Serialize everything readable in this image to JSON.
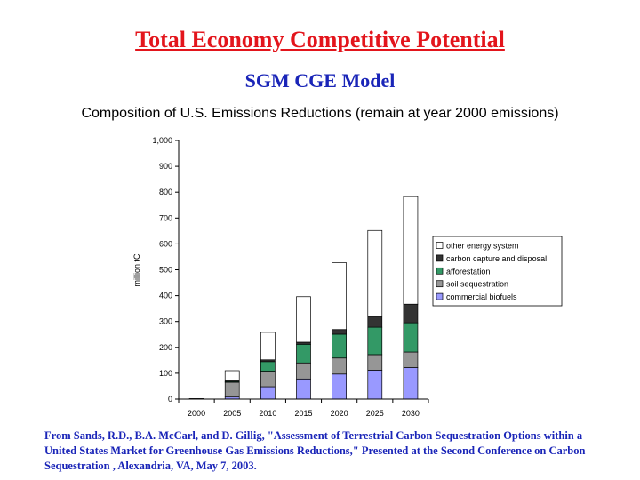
{
  "slide": {
    "title": "Total Economy Competitive Potential",
    "subtitle": "SGM CGE Model",
    "caption": "From Sands, R.D., B.A. McCarl, and D. Gillig, \"Assessment of Terrestrial Carbon Sequestration Options within a United States Market for Greenhouse Gas Emissions Reductions,\" Presented at the Second Conference on Carbon Sequestration , Alexandria, VA, May 7,  2003."
  },
  "chart_data": {
    "type": "bar",
    "stacked": true,
    "title": "Composition of U.S. Emissions Reductions (remain at year 2000 emissions)",
    "xlabel": "",
    "ylabel": "million tC",
    "ylim": [
      0,
      1000
    ],
    "yticks": [
      0,
      100,
      200,
      300,
      400,
      500,
      600,
      700,
      800,
      900,
      1000
    ],
    "ytick_labels": [
      "0",
      "100",
      "200",
      "300",
      "400",
      "500",
      "600",
      "700",
      "800",
      "900",
      "1,000"
    ],
    "grid": false,
    "legend_position": "right",
    "categories": [
      "2000",
      "2005",
      "2010",
      "2015",
      "2020",
      "2025",
      "2030"
    ],
    "series": [
      {
        "name": "commercial biofuels",
        "color": "#9999ff",
        "values": [
          0,
          8,
          48,
          78,
          97,
          112,
          122
        ]
      },
      {
        "name": "soil sequestration",
        "color": "#969696",
        "values": [
          0,
          57,
          60,
          62,
          62,
          60,
          60
        ]
      },
      {
        "name": "afforestation",
        "color": "#339966",
        "values": [
          0,
          3,
          37,
          72,
          92,
          106,
          113
        ]
      },
      {
        "name": "carbon capture and disposal",
        "color": "#333333",
        "values": [
          0,
          5,
          7,
          8,
          18,
          42,
          72
        ]
      },
      {
        "name": "other energy system",
        "color": "#ffffff",
        "values": [
          2,
          37,
          106,
          176,
          258,
          332,
          416
        ]
      }
    ]
  }
}
